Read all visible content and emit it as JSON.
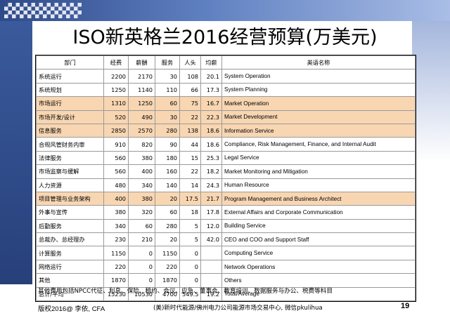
{
  "slide": {
    "title": "ISO新英格兰2016经营预算(万美元)",
    "footnote": "其他费用包括NPCC代征、利息、保险、租约、会议、应急、董事会、教育培训、数据服务与办公、税费等科目",
    "footer": {
      "copyright": "版权2016@ 李依, CFA",
      "source": "(美)新时代能源/佛州电力公司能源市场交易中心, 微信pkulihua",
      "page": "19"
    }
  },
  "table": {
    "headers": [
      "部门",
      "经费",
      "薪酬",
      "服务",
      "人头",
      "均薪",
      "英语名称"
    ],
    "rows": [
      {
        "dept": "系统运行",
        "budget": "2200",
        "salary": "2170",
        "service": "30",
        "headcount": "108",
        "avg": "20.1",
        "english": "System Operation",
        "highlight": false
      },
      {
        "dept": "系统规划",
        "budget": "1250",
        "salary": "1140",
        "service": "110",
        "headcount": "66",
        "avg": "17.3",
        "english": "System Planning",
        "highlight": false
      },
      {
        "dept": "市场运行",
        "budget": "1310",
        "salary": "1250",
        "service": "60",
        "headcount": "75",
        "avg": "16.7",
        "english": "Market Operation",
        "highlight": true
      },
      {
        "dept": "市场开发/设计",
        "budget": "520",
        "salary": "490",
        "service": "30",
        "headcount": "22",
        "avg": "22.3",
        "english": "Market Development",
        "highlight": true
      },
      {
        "dept": "信息服务",
        "budget": "2850",
        "salary": "2570",
        "service": "280",
        "headcount": "138",
        "avg": "18.6",
        "english": "Information Service",
        "highlight": true
      },
      {
        "dept": "合规风管财务内审",
        "budget": "910",
        "salary": "820",
        "service": "90",
        "headcount": "44",
        "avg": "18.6",
        "english": "Compliance, Risk Management, Finance, and Internal Audit",
        "highlight": false
      },
      {
        "dept": "法律服务",
        "budget": "560",
        "salary": "380",
        "service": "180",
        "headcount": "15",
        "avg": "25.3",
        "english": "Legal Service",
        "highlight": false
      },
      {
        "dept": "市场监察与缓解",
        "budget": "560",
        "salary": "400",
        "service": "160",
        "headcount": "22",
        "avg": "18.2",
        "english": "Market Monitoring and Mitigation",
        "highlight": false
      },
      {
        "dept": "人力资源",
        "budget": "480",
        "salary": "340",
        "service": "140",
        "headcount": "14",
        "avg": "24.3",
        "english": "Human Resource",
        "highlight": false
      },
      {
        "dept": "项目管理与业务架构",
        "budget": "400",
        "salary": "380",
        "service": "20",
        "headcount": "17.5",
        "avg": "21.7",
        "english": "Program Management and Business Architect",
        "highlight": true
      },
      {
        "dept": "外事与宣传",
        "budget": "380",
        "salary": "320",
        "service": "60",
        "headcount": "18",
        "avg": "17.8",
        "english": "External Affairs and Corporate Communication",
        "highlight": false
      },
      {
        "dept": "后勤服务",
        "budget": "340",
        "salary": "60",
        "service": "280",
        "headcount": "5",
        "avg": "12.0",
        "english": "Building Service",
        "highlight": false
      },
      {
        "dept": "总裁办、总经理办",
        "budget": "230",
        "salary": "210",
        "service": "20",
        "headcount": "5",
        "avg": "42.0",
        "english": "CEO and COO and Support Staff",
        "highlight": false
      },
      {
        "dept": "计算服务",
        "budget": "1150",
        "salary": "0",
        "service": "1150",
        "headcount": "0",
        "avg": "",
        "english": "Computing Service",
        "highlight": false
      },
      {
        "dept": "网络运行",
        "budget": "220",
        "salary": "0",
        "service": "220",
        "headcount": "0",
        "avg": "",
        "english": "Network Operations",
        "highlight": false
      },
      {
        "dept": "其他",
        "budget": "1870",
        "salary": "0",
        "service": "1870",
        "headcount": "0",
        "avg": "",
        "english": "Others",
        "highlight": false
      },
      {
        "dept": "总计/平均",
        "budget": "15230",
        "salary": "10530",
        "service": "4700",
        "headcount": "549.5",
        "avg": "19.2",
        "english": "Total/Average",
        "highlight": false
      }
    ]
  },
  "colors": {
    "highlight_row": "#f8d6b2",
    "rail_blue": "#2f4a8a"
  }
}
